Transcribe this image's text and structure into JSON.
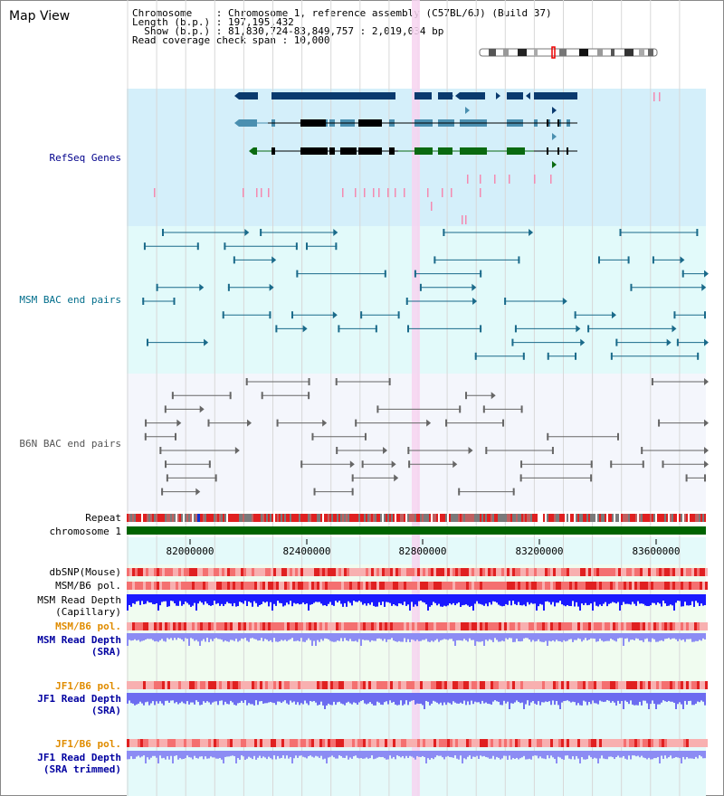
{
  "title": "Map View",
  "info": {
    "line1": "Chromosome    : Chromosome 1, reference assembly (C57BL/6J) (Build 37)",
    "line2": "Length (b.p.) : 197,195,432",
    "line3": "  Show (b.p.) : 81,830,724-83,849,757 : 2,019,034 bp",
    "line4": "Read coverage check span : 10,000"
  },
  "tracks": {
    "refseq": {
      "label": "RefSeq Genes",
      "color": "#00008b"
    },
    "msm_bac": {
      "label": "MSM BAC end pairs",
      "color": "#006d8b"
    },
    "b6n_bac": {
      "label": "B6N BAC end pairs",
      "color": "#555555"
    },
    "repeat": {
      "label": "Repeat"
    },
    "chromosome": {
      "label": "chromosome 1",
      "color": "#006400"
    },
    "dbsnp": {
      "label": "dbSNP(Mouse)"
    },
    "msm_b6_pol": {
      "label": "MSM/B6 pol."
    },
    "msm_read_depth_cap": {
      "label1": "MSM Read Depth",
      "label2": "(Capillary)"
    },
    "msm_b6_pol2": {
      "label": "MSM/B6 pol.",
      "color": "#e08c00"
    },
    "msm_read_depth_sra": {
      "label1": "MSM Read Depth",
      "label2": "(SRA)",
      "color": "#0000a0"
    },
    "jf1_b6_pol": {
      "label": "JF1/B6 pol.",
      "color": "#e08c00"
    },
    "jf1_read_depth_sra": {
      "label1": "JF1 Read Depth",
      "label2": "(SRA)",
      "color": "#0000a0"
    },
    "jf1_b6_pol2": {
      "label": "JF1/B6 pol.",
      "color": "#e08c00"
    },
    "jf1_read_depth_trim": {
      "label1": "JF1 Read Depth",
      "label2": "(SRA trimmed)",
      "color": "#0000a0"
    }
  },
  "axis": {
    "ticks": [
      "82000000",
      "82400000",
      "82800000",
      "83200000",
      "83600000"
    ]
  },
  "colors": {
    "refseq_bg": "#d4effa",
    "msm_bg": "#e2fafa",
    "b6n_bg": "#f4f6fc",
    "highlight": "#f7d4f0",
    "gene_dark": "#0a3a6e",
    "gene_mid": "#4a8fb0",
    "gene_green": "#0a6a10"
  }
}
